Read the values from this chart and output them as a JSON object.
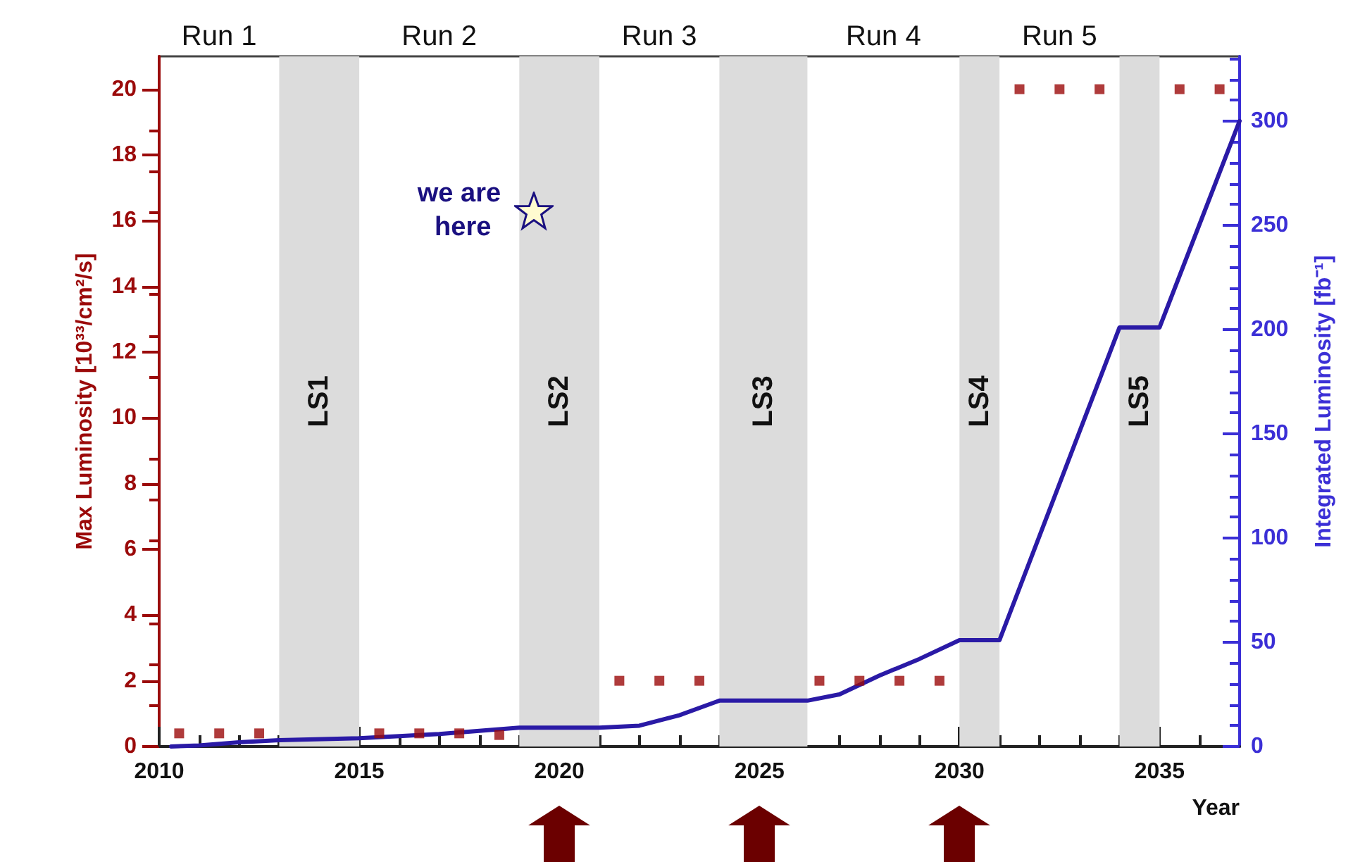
{
  "chart_data": {
    "type": "scatter",
    "xlabel": "Year",
    "ylabel": "Max Luminosity [10³³/cm²/s]",
    "y2label": "Integrated Luminosity [fb⁻¹]",
    "xlim": [
      2010,
      2037
    ],
    "xticks": [
      2010,
      2015,
      2020,
      2025,
      2030,
      2035
    ],
    "ylim": [
      0,
      21
    ],
    "yticks": [
      0,
      2,
      4,
      6,
      8,
      10,
      12,
      14,
      16,
      18,
      20
    ],
    "y2lim": [
      0,
      331
    ],
    "y2ticks": [
      0,
      50,
      100,
      150,
      200,
      250,
      300
    ],
    "series": [
      {
        "marker": "square",
        "color": "#9b0a0a",
        "x": [
          2010.5,
          2011.5,
          2012.5,
          2015.5,
          2016.5,
          2017.5,
          2018.5,
          2021.5,
          2022.5,
          2023.5,
          2026.5,
          2027.5,
          2028.5,
          2029.5,
          2031.5,
          2032.5,
          2033.5,
          2035.5,
          2036.5
        ],
        "values": [
          0.4,
          0.4,
          0.4,
          0.4,
          0.4,
          0.4,
          0.35,
          2,
          2,
          2,
          2,
          2,
          2,
          2,
          20,
          20,
          20,
          20,
          20
        ]
      },
      {
        "type": "line",
        "marker": "none",
        "axis": "y2",
        "color": "#2a1aa6",
        "x": [
          2010.3,
          2011,
          2012,
          2013,
          2015,
          2017,
          2019,
          2021,
          2022,
          2023,
          2024,
          2026.2,
          2027,
          2028,
          2029,
          2030,
          2031,
          2034,
          2035,
          2037
        ],
        "values": [
          0,
          0.5,
          2,
          3,
          4,
          6,
          9,
          9,
          10,
          15,
          22,
          22,
          25,
          34,
          42,
          51,
          51,
          201,
          201,
          300
        ]
      }
    ],
    "bands": [
      {
        "axis": "x",
        "from": 2013,
        "to": 2015,
        "label": "LS1",
        "color": "#dcdcdc"
      },
      {
        "axis": "x",
        "from": 2019,
        "to": 2021,
        "label": "LS2",
        "color": "#dcdcdc"
      },
      {
        "axis": "x",
        "from": 2024,
        "to": 2026.2,
        "label": "LS3",
        "color": "#dcdcdc"
      },
      {
        "axis": "x",
        "from": 2030,
        "to": 2031,
        "label": "LS4",
        "color": "#dcdcdc"
      },
      {
        "axis": "x",
        "from": 2034,
        "to": 2035,
        "label": "LS5",
        "color": "#dcdcdc"
      }
    ],
    "annotations": [
      "Run 1",
      "Run 2",
      "Run 3",
      "Run 4",
      "Run 5",
      {
        "text": "we are here",
        "x": 2019.35,
        "y": 16.3
      }
    ],
    "grid": false
  }
}
